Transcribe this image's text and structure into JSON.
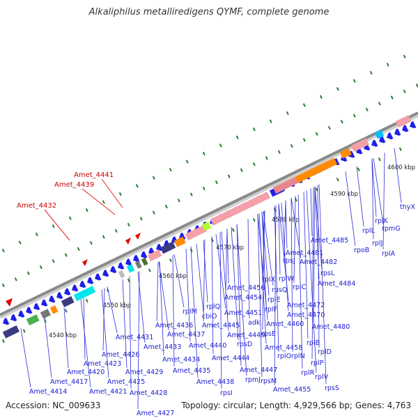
{
  "title": "Alkaliphilus metalliredigens QYMF, complete genome",
  "accession": "Accession: NC_009633",
  "summary": "Topology: circular; Length: 4,929,566 bp; Genes: 4,763",
  "colors": {
    "gene_arrow": "#1f1fe8",
    "gene_label": "#1a1ad0",
    "highlight_label": "#cc0000",
    "tick": "#2a7a2a",
    "backbone": "#8a8a8a"
  },
  "scale_marks": [
    "4540 kbp",
    "4550 kbp",
    "4560 kbp",
    "4570 kbp",
    "4580 kbp",
    "4590 kbp",
    "4600 kbp"
  ],
  "highlighted_genes": [
    "Amet_4432",
    "Amet_4439",
    "Amet_4441"
  ],
  "gene_labels": [
    "Amet_4414",
    "Amet_4417",
    "Amet_4420",
    "Amet_4423",
    "Amet_4426",
    "Amet_4421",
    "Amet_4425",
    "Amet_4429",
    "Amet_4428",
    "Amet_4427",
    "Amet_4431",
    "Amet_4433",
    "Amet_4434",
    "Amet_4435",
    "Amet_4436",
    "Amet_4437",
    "Amet_4438",
    "Amet_4440",
    "Amet_4444",
    "Amet_4445",
    "rplM",
    "cbiO",
    "rplQ",
    "Amet_4456",
    "Amet_4454",
    "Amet_4451",
    "Amet_4449",
    "Amet_4447",
    "rpsI",
    "rplX",
    "rpsQ",
    "rplE",
    "rplF",
    "adk",
    "rpsE",
    "rpmJ",
    "rpsD",
    "rpsM",
    "rplW",
    "rplC",
    "Amet_4460",
    "Amet_4458",
    "rplO",
    "rplN",
    "Amet_4455",
    "Amet_4472",
    "Amet_4470",
    "rplB",
    "rplD",
    "rplP",
    "rplV",
    "rpsS",
    "rplR",
    "Amet_4481",
    "rpsJ",
    "Amet_4482",
    "rpsL",
    "Amet_4484",
    "Amet_4485",
    "Amet_4480",
    "rpoB",
    "rplL",
    "rplK",
    "rplJ",
    "rplA",
    "rpmG",
    "thyX"
  ]
}
